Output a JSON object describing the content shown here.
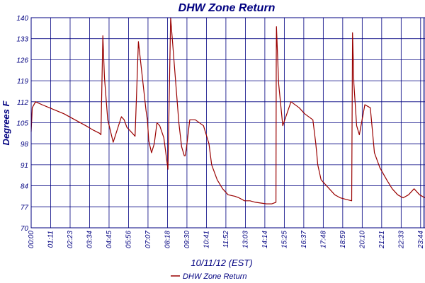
{
  "chart_data": {
    "type": "line",
    "title": "DHW Zone Return",
    "xlabel": "10/11/12 (EST)",
    "ylabel": "Degrees F",
    "ylim": [
      70,
      140
    ],
    "yticks": [
      "70",
      "77",
      "84",
      "91",
      "98",
      "105",
      "112",
      "119",
      "126",
      "133",
      "140"
    ],
    "xlim_minutes": [
      0,
      1440
    ],
    "xticks": [
      "00:00",
      "01:11",
      "02:23",
      "03:34",
      "04:45",
      "05:56",
      "07:07",
      "08:18",
      "09:30",
      "10:41",
      "11:52",
      "13:03",
      "14:14",
      "15:25",
      "16:37",
      "17:48",
      "18:59",
      "20:10",
      "21:21",
      "22:33",
      "23:44"
    ],
    "grid": true,
    "legend_position": "bottom-center",
    "line_color": "#990000",
    "axis_color": "#000080",
    "series": [
      {
        "name": "DHW Zone Return",
        "x_minutes": [
          0,
          4,
          16,
          40,
          80,
          120,
          160,
          200,
          228,
          250,
          255,
          262,
          268,
          280,
          300,
          330,
          340,
          350,
          355,
          370,
          380,
          392,
          420,
          425,
          430,
          440,
          450,
          460,
          470,
          485,
          500,
          510,
          540,
          550,
          560,
          563,
          567,
          580,
          600,
          630,
          650,
          660,
          680,
          700,
          720,
          745,
          760,
          780,
          800,
          820,
          860,
          880,
          895,
          896,
          897,
          905,
          920,
          950,
          980,
          1000,
          1030,
          1040,
          1044,
          1048,
          1060,
          1090,
          1110,
          1120,
          1130,
          1150,
          1172,
          1173,
          1175,
          1180,
          1190,
          1200,
          1220,
          1240,
          1255,
          1275,
          1300,
          1320,
          1340,
          1360,
          1380,
          1400,
          1420,
          1440
        ],
        "values": [
          102,
          110,
          112,
          111,
          109.5,
          108,
          106,
          104,
          102.5,
          101.5,
          101,
          134,
          120,
          106,
          98.5,
          107,
          106,
          103.5,
          103,
          101.5,
          100.5,
          132,
          109,
          106,
          99,
          95,
          98,
          105,
          104,
          100,
          89.5,
          140,
          105,
          97,
          94,
          94,
          96,
          106,
          106,
          104,
          98,
          91,
          86,
          83,
          81,
          80.5,
          80,
          79,
          79,
          78.5,
          78,
          78,
          78.5,
          125,
          137,
          118,
          104,
          112,
          110,
          108,
          106,
          98.5,
          95,
          91,
          86,
          83,
          81,
          80.5,
          80,
          79.5,
          79,
          98,
          135,
          118,
          104,
          101,
          111,
          110,
          95,
          90,
          86,
          83,
          81,
          80,
          81,
          83,
          81,
          80
        ]
      }
    ]
  }
}
